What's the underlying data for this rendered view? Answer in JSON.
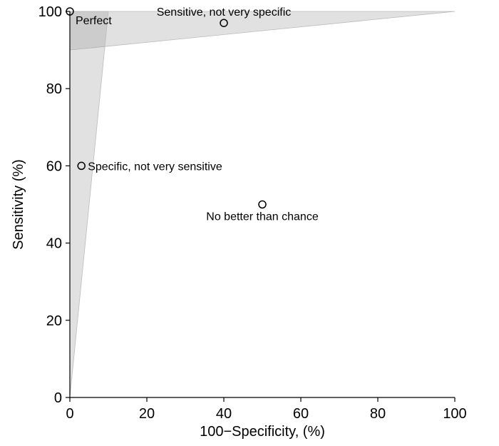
{
  "chart_data": {
    "type": "scatter",
    "xlabel": "100−Specificity, (%)",
    "ylabel": "Sensitivity (%)",
    "xlim": [
      0,
      100
    ],
    "ylim": [
      0,
      100
    ],
    "xticks": [
      0,
      20,
      40,
      60,
      80,
      100
    ],
    "yticks": [
      0,
      20,
      40,
      60,
      80,
      100
    ],
    "grid": false,
    "points": [
      {
        "x": 0,
        "y": 100,
        "label": "Perfect"
      },
      {
        "x": 40,
        "y": 97,
        "label": "Sensitive, not very specific"
      },
      {
        "x": 3,
        "y": 60,
        "label": "Specific, not very sensitive"
      },
      {
        "x": 50,
        "y": 50,
        "label": "No better than chance"
      }
    ],
    "shaded_regions": [
      {
        "vertices": [
          [
            0,
            90
          ],
          [
            0,
            100
          ],
          [
            100,
            100
          ]
        ]
      },
      {
        "vertices": [
          [
            0,
            0
          ],
          [
            0,
            100
          ],
          [
            10,
            100
          ]
        ]
      }
    ]
  }
}
